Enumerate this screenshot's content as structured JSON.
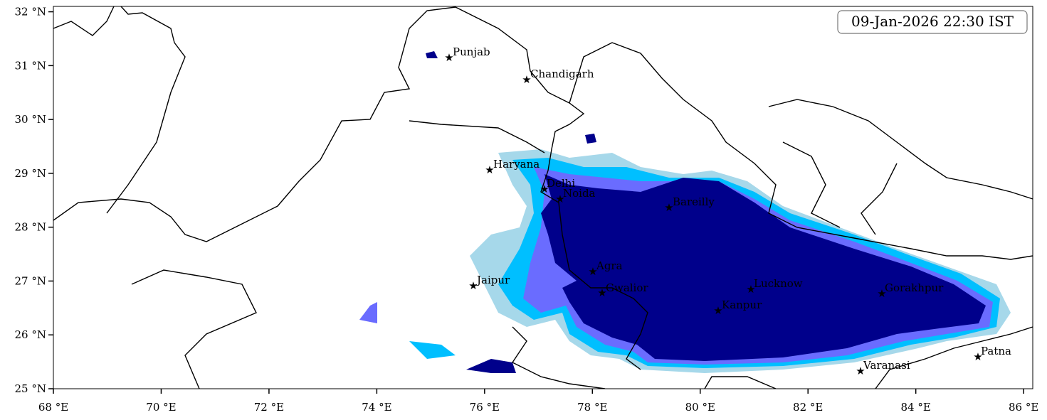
{
  "map": {
    "timestamp": "09-Jan-2026 22:30 IST",
    "xlim": [
      68,
      86.17
    ],
    "ylim": [
      25,
      32.1
    ],
    "xticks": [
      {
        "value": 68,
        "label": "68 °E"
      },
      {
        "value": 70,
        "label": "70 °E"
      },
      {
        "value": 72,
        "label": "72 °E"
      },
      {
        "value": 74,
        "label": "74 °E"
      },
      {
        "value": 76,
        "label": "76 °E"
      },
      {
        "value": 78,
        "label": "78 °E"
      },
      {
        "value": 80,
        "label": "80 °E"
      },
      {
        "value": 82,
        "label": "82 °E"
      },
      {
        "value": 84,
        "label": "84 °E"
      },
      {
        "value": 86,
        "label": "86 °E"
      }
    ],
    "yticks": [
      {
        "value": 25,
        "label": "25 °N"
      },
      {
        "value": 26,
        "label": "26 °N"
      },
      {
        "value": 27,
        "label": "27 °N"
      },
      {
        "value": 28,
        "label": "28 °N"
      },
      {
        "value": 29,
        "label": "29 °N"
      },
      {
        "value": 30,
        "label": "30 °N"
      },
      {
        "value": 31,
        "label": "31 °N"
      },
      {
        "value": 32,
        "label": "32 °N"
      }
    ],
    "places": [
      "Punjab",
      "Chandigarh",
      "Haryana",
      "Delhi",
      "Noida",
      "Bareilly",
      "Jaipur",
      "Agra",
      "Gwalior",
      "Lucknow",
      "Kanpur",
      "Gorakhpur",
      "Varanasi",
      "Patna"
    ]
  }
}
